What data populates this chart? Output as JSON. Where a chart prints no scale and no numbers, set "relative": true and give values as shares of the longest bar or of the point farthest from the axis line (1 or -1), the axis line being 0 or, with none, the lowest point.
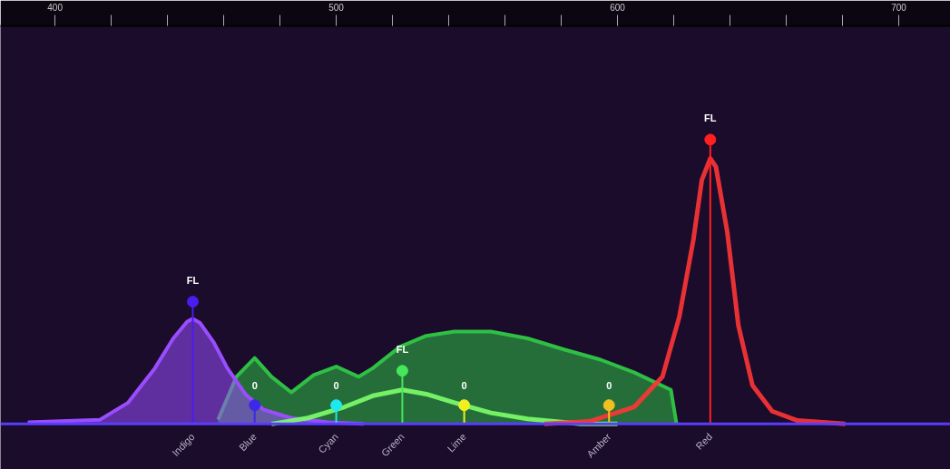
{
  "chart_data": {
    "type": "line",
    "relative": true,
    "xlim": [
      380.6,
      718.4
    ],
    "xticks": [
      400,
      500,
      600,
      700
    ],
    "annotations": [
      "Indigo",
      "Blue",
      "Cyan",
      "Green",
      "Lime",
      "Amber",
      "Red",
      {
        "text": "FL",
        "x": 449,
        "y": 0.43
      },
      {
        "text": "0",
        "x": 471,
        "y": 0.066
      },
      {
        "text": "0",
        "x": 500,
        "y": 0.066
      },
      {
        "text": "FL",
        "x": 523.5,
        "y": 0.187
      },
      {
        "text": "0",
        "x": 545.5,
        "y": 0.066
      },
      {
        "text": "0",
        "x": 597,
        "y": 0.066
      },
      {
        "text": "FL",
        "x": 633,
        "y": 1
      }
    ],
    "grid": false,
    "series": [
      {
        "type": "area",
        "color": "#2fbf45",
        "x": [
          458,
          464.5,
          471,
          477,
          484,
          492,
          500,
          508,
          513,
          522.6,
          532,
          542,
          555,
          568,
          581,
          594,
          606,
          619,
          621
        ],
        "values": [
          0.015,
          0.166,
          0.232,
          0.166,
          0.111,
          0.172,
          0.202,
          0.166,
          0.196,
          0.271,
          0.31,
          0.325,
          0.325,
          0.301,
          0.262,
          0.226,
          0.181,
          0.12,
          0
        ]
      },
      {
        "type": "area",
        "color": "#9a4dff",
        "x": [
          390.3,
          416,
          426,
          435.5,
          442,
          447,
          449,
          451.6,
          456.5,
          461.3,
          467.7,
          474,
          484,
          497,
          509.7
        ],
        "values": [
          0.006,
          0.015,
          0.075,
          0.196,
          0.3,
          0.36,
          0.37,
          0.355,
          0.286,
          0.196,
          0.105,
          0.051,
          0.021,
          0.006,
          0
        ]
      },
      {
        "color": "#7dff6a",
        "x": [
          477,
          490,
          503,
          513,
          523.5,
          532,
          542,
          555,
          568,
          587,
          600
        ],
        "values": [
          0,
          0.021,
          0.06,
          0.099,
          0.12,
          0.105,
          0.075,
          0.039,
          0.018,
          null,
          0
        ]
      },
      {
        "color": "#ff3535",
        "x": [
          574,
          590,
          606,
          616,
          622,
          627,
          630,
          633,
          635,
          639,
          643,
          648,
          655,
          664,
          681
        ],
        "values": [
          0,
          0.009,
          0.06,
          0.166,
          0.377,
          0.648,
          0.858,
          0.934,
          0.904,
          0.678,
          0.346,
          0.136,
          0.045,
          0.012,
          0
        ]
      },
      {
        "type": "lollipop",
        "x": [
          449,
          471,
          500,
          523.5,
          545.5,
          597,
          633
        ],
        "values": [
          0.43,
          0.066,
          0.066,
          0.187,
          0.066,
          0.066,
          1
        ],
        "colors": [
          "#4a1cf0",
          "#3a2ae8",
          "#1ee8f0",
          "#45e85a",
          "#f0f020",
          "#f0c020",
          "#ff2020"
        ]
      }
    ]
  }
}
